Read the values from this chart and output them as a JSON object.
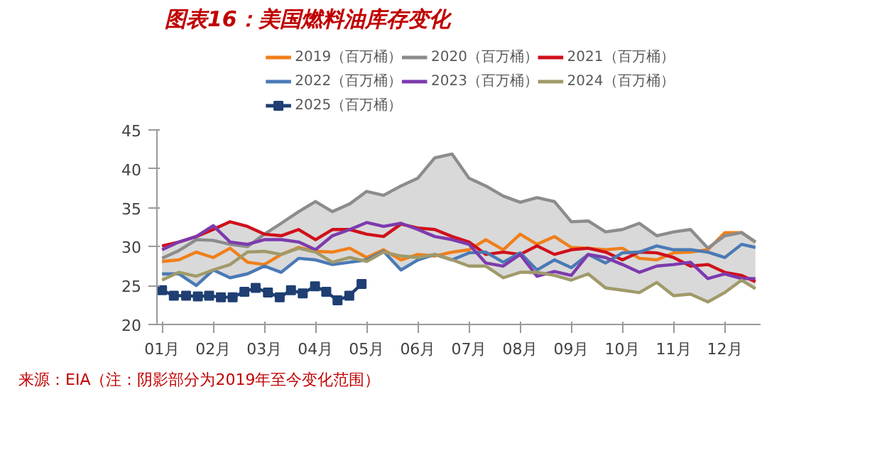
{
  "chart_data": {
    "type": "line",
    "title": "图表16：美国燃料油库存变化",
    "x": [
      1,
      1.33,
      1.67,
      2,
      2.33,
      2.67,
      3,
      3.33,
      3.67,
      4,
      4.33,
      4.67,
      5,
      5.33,
      5.67,
      6,
      6.33,
      6.67,
      7,
      7.33,
      7.67,
      8,
      8.33,
      8.67,
      9,
      9.33,
      9.67,
      10,
      10.33,
      10.67,
      11,
      11.33,
      11.67,
      12,
      12.33,
      12.6
    ],
    "xlim": [
      0.9,
      12.7
    ],
    "xticks": [
      {
        "value": 1,
        "label": "01月"
      },
      {
        "value": 2,
        "label": "02月"
      },
      {
        "value": 3,
        "label": "03月"
      },
      {
        "value": 4,
        "label": "04月"
      },
      {
        "value": 5,
        "label": "05月"
      },
      {
        "value": 6,
        "label": "06月"
      },
      {
        "value": 7,
        "label": "07月"
      },
      {
        "value": 8,
        "label": "08月"
      },
      {
        "value": 9,
        "label": "09月"
      },
      {
        "value": 10,
        "label": "10月"
      },
      {
        "value": 11,
        "label": "11月"
      },
      {
        "value": 12,
        "label": "12月"
      }
    ],
    "ylim": [
      20,
      45
    ],
    "yticks": [
      20,
      25,
      30,
      35,
      40,
      45
    ],
    "grid": false,
    "legend": "top",
    "marker": "none",
    "line_style": "solid",
    "series": [
      {
        "name": "2019（百万桶）",
        "color": "#f07f1a",
        "values": [
          28.1,
          28.3,
          29.3,
          28.6,
          29.8,
          28,
          27.7,
          29,
          29.9,
          29.4,
          29.3,
          29.8,
          28.6,
          29.6,
          28.3,
          29,
          28.8,
          29.3,
          29.6,
          30.9,
          29.6,
          31.6,
          30.3,
          31.3,
          29.9,
          29.8,
          29.6,
          29.8,
          28.5,
          28.3,
          29.2,
          29.3,
          29.6,
          31.8,
          31.8,
          30.6
        ]
      },
      {
        "name": "2020（百万桶）",
        "color": "#8c8c8c",
        "values": [
          28.5,
          29.5,
          30.9,
          30.8,
          30.3,
          30,
          31.6,
          33,
          34.5,
          35.8,
          34.5,
          35.5,
          37.1,
          36.6,
          37.8,
          38.8,
          41.4,
          41.9,
          38.8,
          37.8,
          36.5,
          35.7,
          36.3,
          35.8,
          33.2,
          33.3,
          31.9,
          32.2,
          33,
          31.4,
          31.9,
          32.2,
          29.8,
          31.4,
          31.8,
          30.6
        ],
        "upper": [
          30.1,
          30.6,
          31.3,
          32.7,
          33.2,
          32.6,
          31.6,
          33,
          34.5,
          35.8,
          34.5,
          35.5,
          37.1,
          36.6,
          37.8,
          38.8,
          41.4,
          41.9,
          38.8,
          37.8,
          36.5,
          35.7,
          36.3,
          35.8,
          33.2,
          33.3,
          31.9,
          32.2,
          33,
          31.4,
          31.9,
          32.2,
          29.8,
          31.8,
          31.8,
          30.6
        ],
        "lower": [
          25.7,
          26.5,
          25,
          27,
          26,
          26.5,
          27.5,
          26.7,
          28.5,
          28.3,
          27.7,
          28,
          28.1,
          29.3,
          27,
          28.3,
          28.8,
          28.3,
          27.5,
          27.5,
          26,
          26.7,
          26.2,
          26.3,
          25.7,
          26.5,
          24.7,
          24.4,
          24.1,
          25.4,
          23.7,
          23.9,
          22.9,
          24.1,
          25.7,
          24.6
        ]
      },
      {
        "name": "2021（百万桶）",
        "color": "#d0101b",
        "values": [
          30.1,
          30.6,
          31.3,
          32.2,
          33.2,
          32.6,
          31.6,
          31.4,
          32.2,
          30.9,
          32.2,
          32.2,
          31.6,
          31.3,
          32.9,
          32.4,
          32.2,
          31.3,
          30.6,
          29,
          29.3,
          29,
          30.1,
          29,
          29.6,
          29.8,
          29.3,
          28.3,
          29.3,
          29.2,
          28.6,
          27.5,
          27.7,
          26.7,
          26.3,
          25.5
        ]
      },
      {
        "name": "2022（百万桶）",
        "color": "#4a7ab5",
        "values": [
          26.5,
          26.5,
          25,
          27,
          26,
          26.5,
          27.5,
          26.7,
          28.5,
          28.3,
          27.7,
          28,
          28.3,
          29.4,
          27,
          28.3,
          29,
          28.3,
          29.2,
          29.3,
          28,
          29.2,
          27,
          28.3,
          27.3,
          29,
          27.9,
          29.2,
          29.3,
          30.1,
          29.6,
          29.6,
          29.3,
          28.6,
          30.3,
          29.9
        ]
      },
      {
        "name": "2023（百万桶）",
        "color": "#7d3aae",
        "values": [
          29.6,
          30.6,
          31.3,
          32.7,
          30.6,
          30.3,
          30.9,
          30.9,
          30.6,
          29.6,
          31.4,
          32.2,
          33.1,
          32.6,
          33,
          32.2,
          31.3,
          30.9,
          30.3,
          27.9,
          27.5,
          29,
          26.2,
          26.8,
          26.3,
          29,
          28.6,
          27.7,
          26.7,
          27.5,
          27.7,
          28,
          25.9,
          26.5,
          25.9,
          25.9
        ]
      },
      {
        "name": "2024（百万桶）",
        "color": "#a09a6a",
        "values": [
          25.7,
          26.7,
          26.2,
          27,
          27.7,
          29.3,
          29.4,
          29,
          29.8,
          29.3,
          28,
          28.6,
          28.1,
          29.3,
          28.8,
          28.6,
          29,
          28.3,
          27.5,
          27.5,
          26,
          26.7,
          26.7,
          26.3,
          25.7,
          26.5,
          24.7,
          24.4,
          24.1,
          25.4,
          23.7,
          23.9,
          22.9,
          24.1,
          25.7,
          24.6
        ]
      },
      {
        "name": "2025（百万桶）",
        "color": "#1f3f73",
        "marker": "square",
        "x": [
          1,
          1.23,
          1.47,
          1.7,
          1.92,
          2.15,
          2.38,
          2.61,
          2.83,
          3.07,
          3.3,
          3.52,
          3.75,
          3.99,
          4.21,
          4.43,
          4.66,
          4.9
        ],
        "values": [
          24.4,
          23.7,
          23.7,
          23.6,
          23.7,
          23.5,
          23.5,
          24.2,
          24.7,
          24.1,
          23.5,
          24.4,
          24,
          24.9,
          24.2,
          23.1,
          23.7,
          25.2
        ]
      }
    ],
    "annotations": [
      "来源：EIA（注：阴影部分为2019年至今变化范围）"
    ]
  }
}
